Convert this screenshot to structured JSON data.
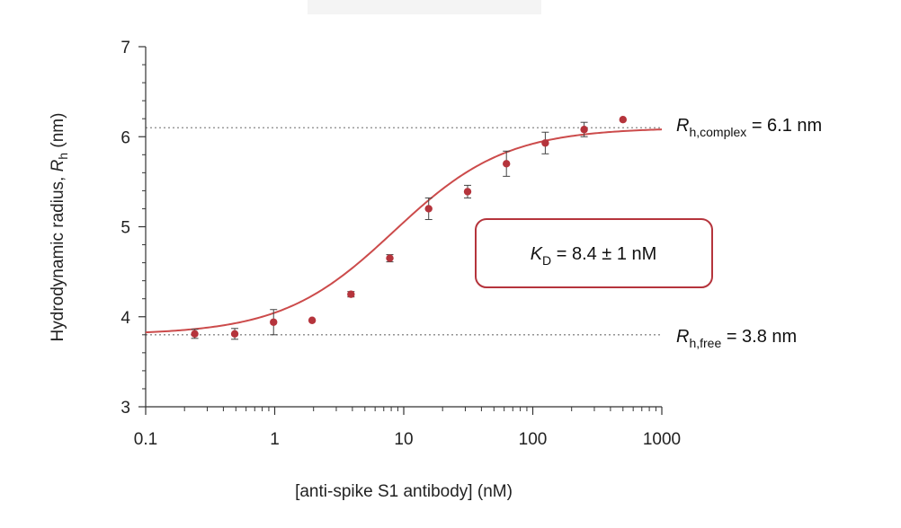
{
  "chart_data": {
    "type": "scatter",
    "x_scale": "log",
    "xlim": [
      0.1,
      1000
    ],
    "ylim": [
      3,
      7
    ],
    "xlabel": "[anti-spike S1 antibody] (nM)",
    "ylabel_prefix": "Hydrodynamic radius, ",
    "ylabel_symbol": "R",
    "ylabel_sub": "h",
    "ylabel_suffix": " (nm)",
    "x_ticks": [
      0.1,
      1,
      10,
      100,
      1000
    ],
    "x_tick_labels": [
      "0.1",
      "1",
      "10",
      "100",
      "1000"
    ],
    "y_ticks": [
      3,
      4,
      5,
      6,
      7
    ],
    "y_tick_labels": [
      "3",
      "4",
      "5",
      "6",
      "7"
    ],
    "series": [
      {
        "points": [
          {
            "x": 0.24,
            "y": 3.81,
            "err": 0.05
          },
          {
            "x": 0.49,
            "y": 3.81,
            "err": 0.06
          },
          {
            "x": 0.98,
            "y": 3.94,
            "err": 0.14
          },
          {
            "x": 1.95,
            "y": 3.96,
            "err": 0
          },
          {
            "x": 3.9,
            "y": 4.25,
            "err": 0.03
          },
          {
            "x": 7.8,
            "y": 4.65,
            "err": 0.04
          },
          {
            "x": 15.6,
            "y": 5.2,
            "err": 0.12
          },
          {
            "x": 31.25,
            "y": 5.39,
            "err": 0.07
          },
          {
            "x": 62.5,
            "y": 5.7,
            "err": 0.14
          },
          {
            "x": 125,
            "y": 5.93,
            "err": 0.12
          },
          {
            "x": 250,
            "y": 6.08,
            "err": 0.08
          },
          {
            "x": 500,
            "y": 6.19,
            "err": 0
          }
        ],
        "fit": {
          "r_free": 3.8,
          "r_complex": 6.1,
          "kd": 8.4
        }
      }
    ],
    "reference_lines": [
      {
        "y": 6.1,
        "symbol": "R",
        "sub": "h,complex",
        "text": " = 6.1 nm"
      },
      {
        "y": 3.8,
        "symbol": "R",
        "sub": "h,free",
        "text": " = 3.8 nm"
      }
    ],
    "kd_box": {
      "symbol": "K",
      "sub": "D",
      "text": " = 8.4 ± 1 nM"
    },
    "colors": {
      "data": "#b5343c",
      "fit": "#cc4b4b",
      "axis": "#333333",
      "reference": "#888888",
      "box": "#b5343c"
    }
  }
}
